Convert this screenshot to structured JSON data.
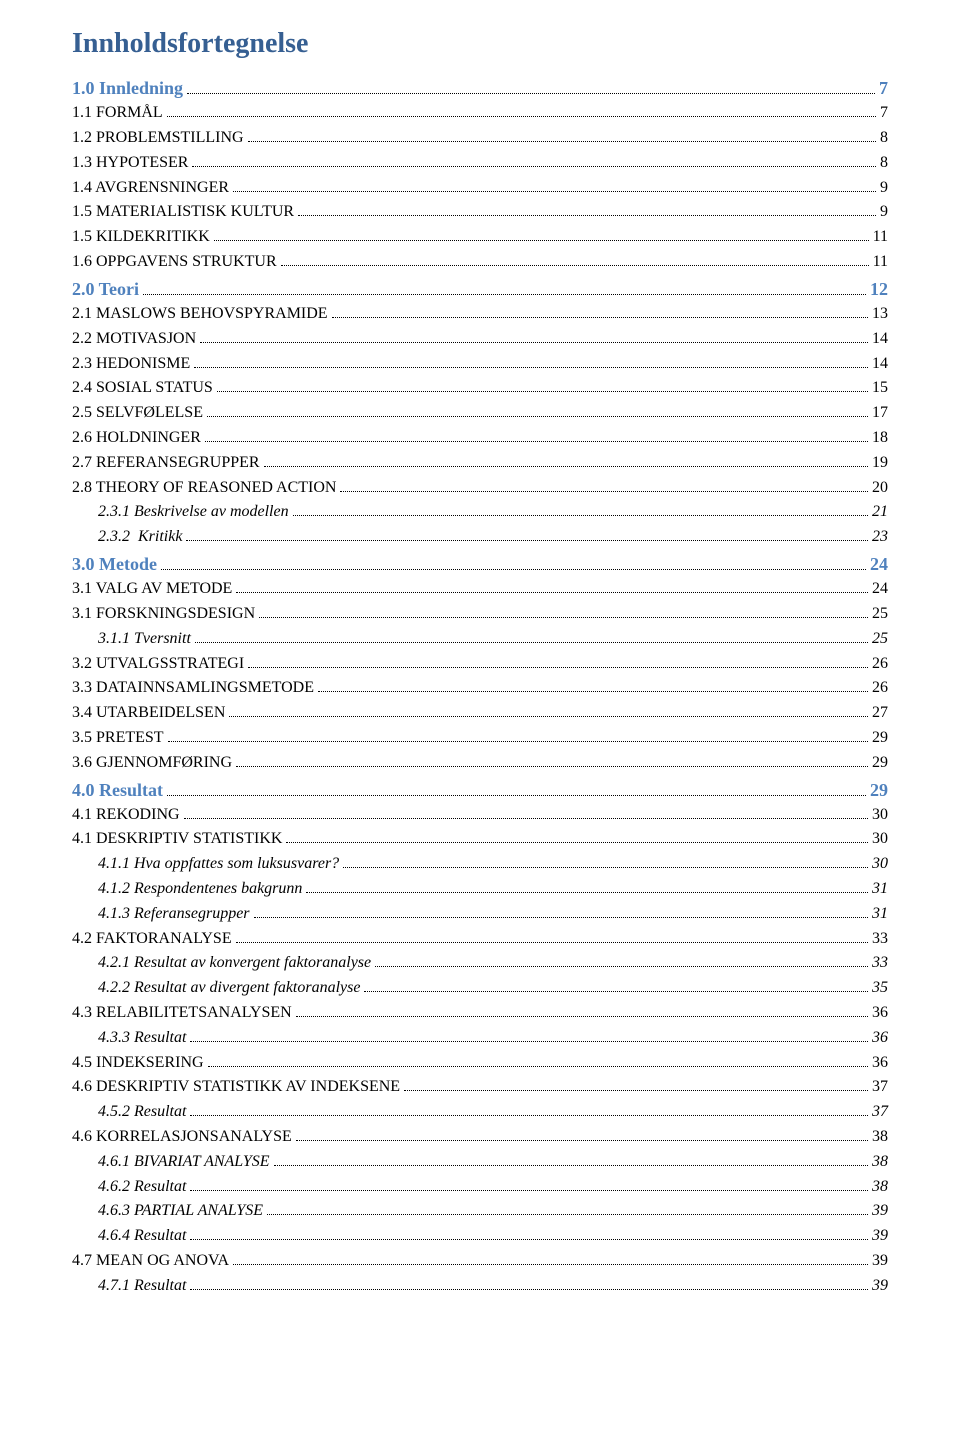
{
  "title": "Innholdsfortegnelse",
  "colors": {
    "heading": "#365f92",
    "section": "#4f81bd",
    "text": "#000000",
    "leaders": "#000000",
    "background": "#ffffff"
  },
  "typography": {
    "title_fontsize_pt": 21,
    "section_fontsize_pt": 14,
    "entry_fontsize_pt": 12,
    "font_family": "Times New Roman"
  },
  "sections": [
    {
      "label": "1.0 Innledning",
      "page": "7",
      "entries": [
        {
          "label": "1.1 FORMÅL",
          "page": "7",
          "level": 1,
          "italic": false
        },
        {
          "label": "1.2 PROBLEMSTILLING",
          "page": "8",
          "level": 1,
          "italic": false
        },
        {
          "label": "1.3 HYPOTESER",
          "page": "8",
          "level": 1,
          "italic": false
        },
        {
          "label": "1.4 AVGRENSNINGER",
          "page": "9",
          "level": 1,
          "italic": false
        },
        {
          "label": "1.5 MATERIALISTISK KULTUR",
          "page": "9",
          "level": 1,
          "italic": false
        },
        {
          "label": "1.5 KILDEKRITIKK",
          "page": "11",
          "level": 1,
          "italic": false
        },
        {
          "label": "1.6 OPPGAVENS STRUKTUR",
          "page": "11",
          "level": 1,
          "italic": false
        }
      ]
    },
    {
      "label": "2.0 Teori",
      "page": "12",
      "entries": [
        {
          "label": "2.1 MASLOWS BEHOVSPYRAMIDE",
          "page": "13",
          "level": 1,
          "italic": false
        },
        {
          "label": "2.2 MOTIVASJON",
          "page": "14",
          "level": 1,
          "italic": false
        },
        {
          "label": "2.3 HEDONISME",
          "page": "14",
          "level": 1,
          "italic": false
        },
        {
          "label": "2.4 SOSIAL STATUS",
          "page": "15",
          "level": 1,
          "italic": false
        },
        {
          "label": "2.5 SELVFØLELSE",
          "page": "17",
          "level": 1,
          "italic": false
        },
        {
          "label": "2.6 HOLDNINGER",
          "page": "18",
          "level": 1,
          "italic": false
        },
        {
          "label": "2.7 REFERANSEGRUPPER",
          "page": "19",
          "level": 1,
          "italic": false
        },
        {
          "label": "2.8 THEORY OF REASONED ACTION",
          "page": "20",
          "level": 1,
          "italic": false
        },
        {
          "label": "2.3.1 Beskrivelse av modellen",
          "page": "21",
          "level": 2,
          "italic": true
        },
        {
          "label": "2.3.2  Kritikk",
          "page": "23",
          "level": 2,
          "italic": true
        }
      ]
    },
    {
      "label": "3.0 Metode",
      "page": "24",
      "entries": [
        {
          "label": "3.1 VALG AV METODE",
          "page": "24",
          "level": 1,
          "italic": false
        },
        {
          "label": "3.1 FORSKNINGSDESIGN",
          "page": "25",
          "level": 1,
          "italic": false
        },
        {
          "label": "3.1.1 Tversnitt",
          "page": "25",
          "level": 2,
          "italic": true
        },
        {
          "label": "3.2 UTVALGSSTRATEGI",
          "page": "26",
          "level": 1,
          "italic": false
        },
        {
          "label": "3.3 DATAINNSAMLINGSMETODE",
          "page": "26",
          "level": 1,
          "italic": false
        },
        {
          "label": "3.4 UTARBEIDELSEN",
          "page": "27",
          "level": 1,
          "italic": false
        },
        {
          "label": "3.5 PRETEST",
          "page": "29",
          "level": 1,
          "italic": false
        },
        {
          "label": "3.6 GJENNOMFØRING",
          "page": "29",
          "level": 1,
          "italic": false
        }
      ]
    },
    {
      "label": "4.0 Resultat",
      "page": "29",
      "entries": [
        {
          "label": "4.1 REKODING",
          "page": "30",
          "level": 1,
          "italic": false
        },
        {
          "label": "4.1 DESKRIPTIV STATISTIKK",
          "page": "30",
          "level": 1,
          "italic": false
        },
        {
          "label": "4.1.1 Hva oppfattes som luksusvarer?",
          "page": "30",
          "level": 2,
          "italic": true
        },
        {
          "label": "4.1.2 Respondentenes bakgrunn",
          "page": "31",
          "level": 2,
          "italic": true
        },
        {
          "label": "4.1.3 Referansegrupper",
          "page": "31",
          "level": 2,
          "italic": true
        },
        {
          "label": "4.2 FAKTORANALYSE",
          "page": "33",
          "level": 1,
          "italic": false
        },
        {
          "label": "4.2.1 Resultat av konvergent faktoranalyse",
          "page": "33",
          "level": 2,
          "italic": true
        },
        {
          "label": "4.2.2 Resultat av divergent faktoranalyse",
          "page": "35",
          "level": 2,
          "italic": true
        },
        {
          "label": "4.3 RELABILITETSANALYSEN",
          "page": "36",
          "level": 1,
          "italic": false
        },
        {
          "label": "4.3.3 Resultat",
          "page": "36",
          "level": 2,
          "italic": true
        },
        {
          "label": "4.5 INDEKSERING",
          "page": "36",
          "level": 1,
          "italic": false
        },
        {
          "label": "4.6 DESKRIPTIV STATISTIKK AV INDEKSENE",
          "page": "37",
          "level": 1,
          "italic": false
        },
        {
          "label": "4.5.2 Resultat",
          "page": "37",
          "level": 2,
          "italic": true
        },
        {
          "label": "4.6 KORRELASJONSANALYSE",
          "page": "38",
          "level": 1,
          "italic": false
        },
        {
          "label": "4.6.1 BIVARIAT ANALYSE",
          "page": "38",
          "level": 2,
          "italic": true
        },
        {
          "label": "4.6.2 Resultat",
          "page": "38",
          "level": 2,
          "italic": true
        },
        {
          "label": "4.6.3 PARTIAL ANALYSE",
          "page": "39",
          "level": 2,
          "italic": true
        },
        {
          "label": "4.6.4 Resultat",
          "page": "39",
          "level": 2,
          "italic": true
        },
        {
          "label": "4.7 MEAN OG ANOVA",
          "page": "39",
          "level": 1,
          "italic": false
        },
        {
          "label": "4.7.1 Resultat",
          "page": "39",
          "level": 2,
          "italic": true
        }
      ]
    }
  ]
}
